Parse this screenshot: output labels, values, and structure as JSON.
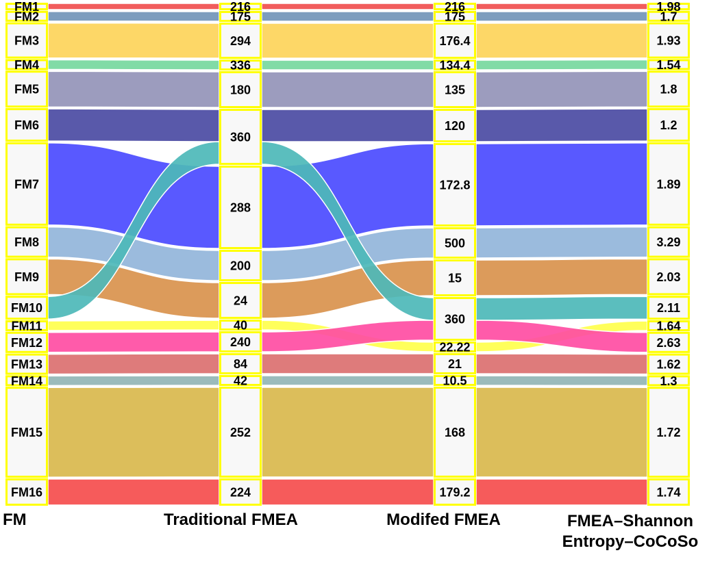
{
  "chart_data": {
    "type": "alluvial",
    "axes": [
      "FM",
      "Traditional FMEA",
      "Modifed FMEA",
      "FMEA–Shannon\nEntropy–CoCoSo"
    ],
    "axis_lines": {
      "a0": "FM",
      "a1": "Traditional FMEA",
      "a2": "Modifed FMEA",
      "a3_line1": "FMEA–Shannon",
      "a3_line2": "Entropy–CoCoSo"
    },
    "items": [
      {
        "fm": "FM1",
        "traditional": "216",
        "modified": "216",
        "cocoso": "1.98",
        "color": "#F04E4E"
      },
      {
        "fm": "FM2",
        "traditional": "175",
        "modified": "175",
        "cocoso": "1.7",
        "color": "#7295B8"
      },
      {
        "fm": "FM3",
        "traditional": "294",
        "modified": "176.4",
        "cocoso": "1.93",
        "color": "#FDD45A"
      },
      {
        "fm": "FM4",
        "traditional": "336",
        "modified": "134.4",
        "cocoso": "1.54",
        "color": "#76D89E"
      },
      {
        "fm": "FM5",
        "traditional": "180",
        "modified": "135",
        "cocoso": "1.8",
        "color": "#9494B8"
      },
      {
        "fm": "FM6",
        "traditional": "360",
        "modified": "120",
        "cocoso": "1.2",
        "color": "#4B4BA3"
      },
      {
        "fm": "FM7",
        "traditional": "288",
        "modified": "172.8",
        "cocoso": "1.89",
        "color": "#4B4BFF"
      },
      {
        "fm": "FM8",
        "traditional": "200",
        "modified": "500",
        "cocoso": "3.29",
        "color": "#93B5DA"
      },
      {
        "fm": "FM9",
        "traditional": "24",
        "modified": "15",
        "cocoso": "2.03",
        "color": "#D9934D"
      },
      {
        "fm": "FM10",
        "traditional": "360",
        "modified": "360",
        "cocoso": "2.11",
        "color": "#4DB8B8"
      },
      {
        "fm": "FM11",
        "traditional": "40",
        "modified": "22.22",
        "cocoso": "1.64",
        "color": "#FFFF4D"
      },
      {
        "fm": "FM12",
        "traditional": "240",
        "modified": "360",
        "cocoso": "2.63",
        "color": "#FF4DA3"
      },
      {
        "fm": "FM13",
        "traditional": "84",
        "modified": "21",
        "cocoso": "1.62",
        "color": "#DB7070"
      },
      {
        "fm": "FM14",
        "traditional": "42",
        "modified": "10.5",
        "cocoso": "1.3",
        "color": "#93B5B5"
      },
      {
        "fm": "FM15",
        "traditional": "252",
        "modified": "168",
        "cocoso": "1.72",
        "color": "#D9B84D"
      },
      {
        "fm": "FM16",
        "traditional": "224",
        "modified": "179.2",
        "cocoso": "1.74",
        "color": "#F54D4D"
      }
    ],
    "node_border_color": "#FFFF00",
    "node_fill_color": "#F8F8F8"
  }
}
